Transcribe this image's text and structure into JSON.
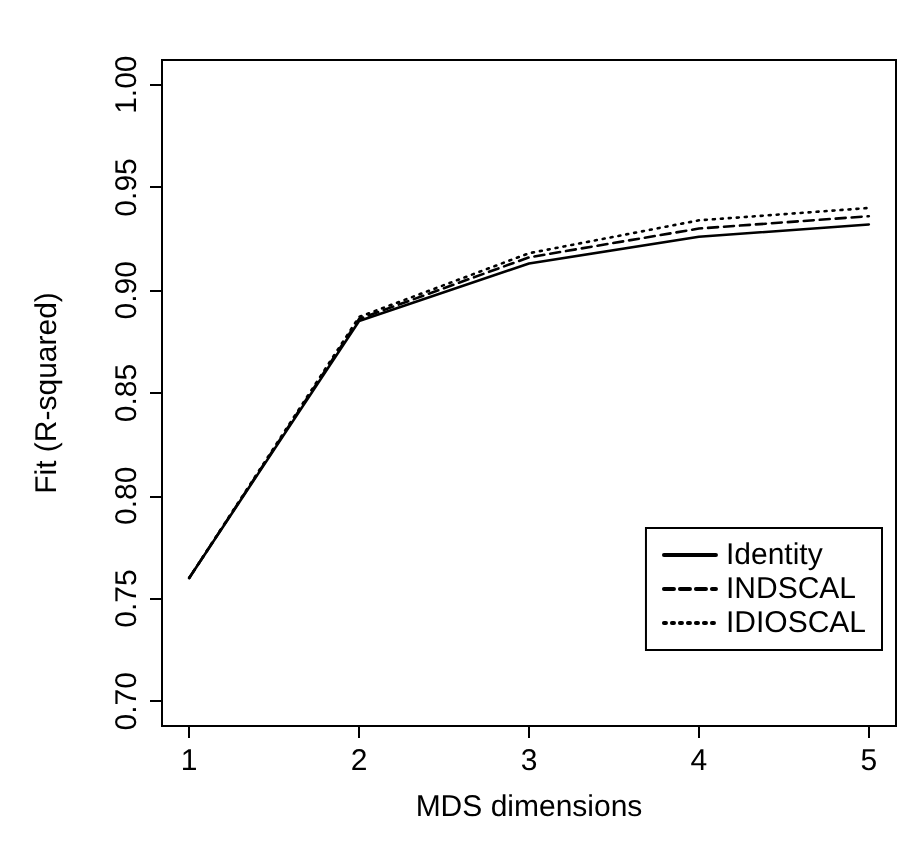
{
  "chart_data": {
    "type": "line",
    "xlabel": "MDS dimensions",
    "ylabel": "Fit (R-squared)",
    "x": [
      1,
      2,
      3,
      4,
      5
    ],
    "series": [
      {
        "name": "Identity",
        "color": "#000000",
        "line_style": "solid",
        "values": [
          0.76,
          0.885,
          0.913,
          0.926,
          0.932
        ]
      },
      {
        "name": "INDSCAL",
        "color": "#000000",
        "line_style": "dashed",
        "values": [
          0.76,
          0.886,
          0.916,
          0.93,
          0.936
        ]
      },
      {
        "name": "IDIOSCAL",
        "color": "#000000",
        "line_style": "dotted",
        "values": [
          0.76,
          0.887,
          0.918,
          0.934,
          0.94
        ]
      }
    ],
    "xlim": [
      0.84,
      5.16
    ],
    "xticks": [
      1,
      2,
      3,
      4,
      5
    ],
    "ylim": [
      0.688,
      1.012
    ],
    "yticks": [
      {
        "value": 0.7,
        "label": "0.70"
      },
      0.75,
      {
        "value": 0.8,
        "label": "0.80"
      },
      0.85,
      {
        "value": 0.9,
        "label": "0.90"
      },
      0.95,
      {
        "value": 1,
        "label": "1.00"
      }
    ],
    "grid": false,
    "legend": "bottom right",
    "marker": "none"
  }
}
